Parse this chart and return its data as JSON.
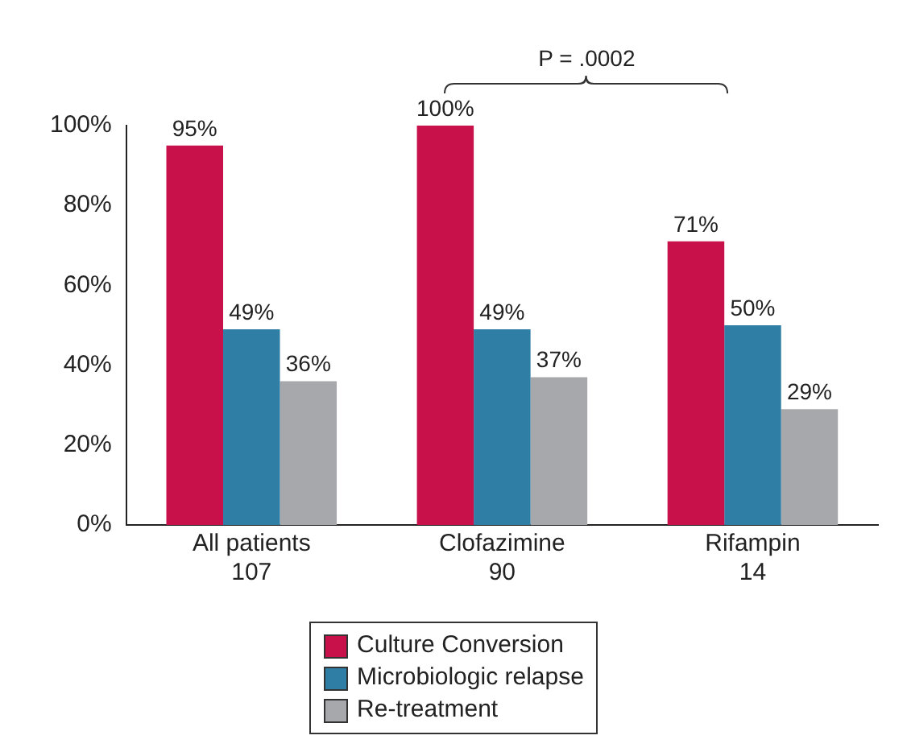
{
  "chart_data": {
    "type": "bar",
    "categories": [
      "All patients\n107",
      "Clofazimine\n90",
      "Rifampin\n14"
    ],
    "series": [
      {
        "name": "Culture Conversion",
        "color": "#c8104a",
        "values": [
          95,
          100,
          71
        ],
        "value_labels": [
          "95%",
          "100%",
          "71%"
        ]
      },
      {
        "name": "Microbiologic relapse",
        "color": "#2e7ea6",
        "values": [
          49,
          49,
          50
        ],
        "value_labels": [
          "49%",
          "49%",
          "50%"
        ]
      },
      {
        "name": "Re-treatment",
        "color": "#a6a8ab",
        "values": [
          36,
          37,
          29
        ],
        "value_labels": [
          "36%",
          "37%",
          "29%"
        ]
      }
    ],
    "ylim": [
      0,
      100
    ],
    "yticks": [
      {
        "value": 0,
        "label": "0%"
      },
      {
        "value": 20,
        "label": "20%"
      },
      {
        "value": 40,
        "label": "40%"
      },
      {
        "value": 60,
        "label": "60%"
      },
      {
        "value": 80,
        "label": "80%"
      },
      {
        "value": 100,
        "label": "100%"
      }
    ],
    "annotations": [
      "P = .0002"
    ],
    "legend": "bottom",
    "grid": false
  }
}
